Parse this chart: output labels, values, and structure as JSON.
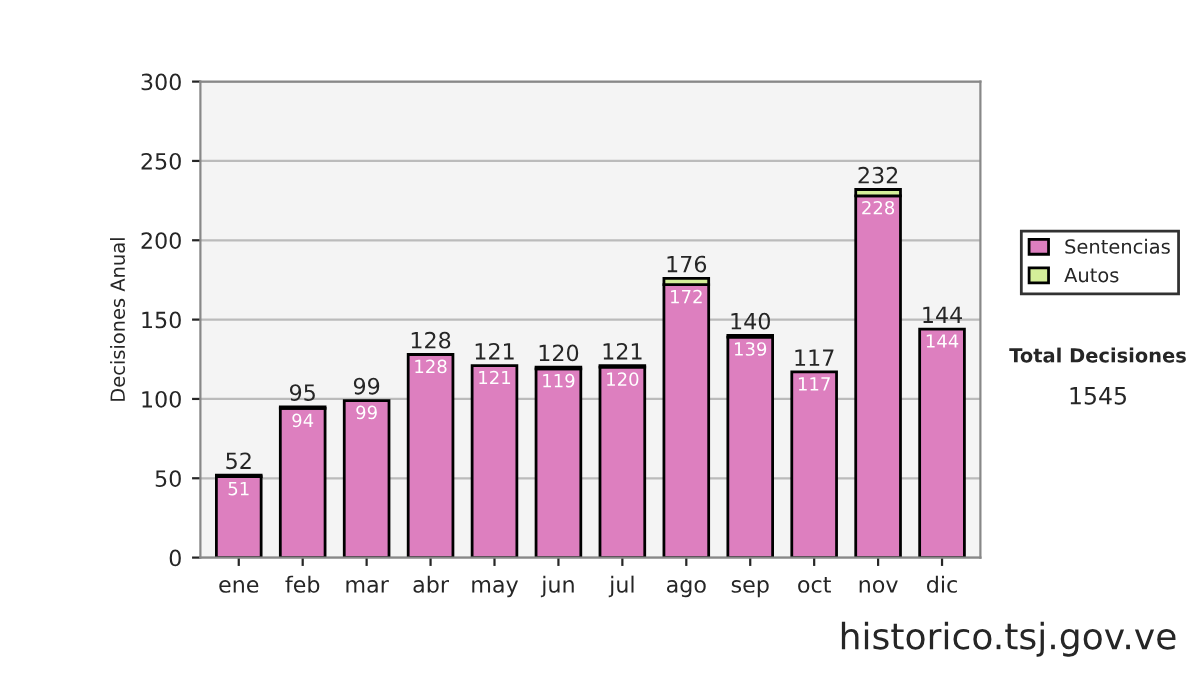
{
  "chart_data": {
    "type": "bar",
    "ylabel": "Decisiones Anual",
    "categories": [
      "ene",
      "feb",
      "mar",
      "abr",
      "may",
      "jun",
      "jul",
      "ago",
      "sep",
      "oct",
      "nov",
      "dic"
    ],
    "stacked": true,
    "series": [
      {
        "name": "Sentencias",
        "color": "#dd7fbf",
        "values": [
          51,
          94,
          99,
          128,
          121,
          119,
          120,
          172,
          139,
          117,
          228,
          144
        ],
        "value_labels": [
          "51",
          "94",
          "99",
          "128",
          "121",
          "119",
          "120",
          "172",
          "139",
          "117",
          "228",
          "144"
        ]
      },
      {
        "name": "Autos",
        "color": "#d4ee99",
        "values": [
          1,
          1,
          0,
          0,
          0,
          1,
          1,
          4,
          1,
          0,
          4,
          0
        ]
      }
    ],
    "totals": [
      "52",
      "95",
      "99",
      "128",
      "121",
      "120",
      "121",
      "176",
      "140",
      "117",
      "232",
      "144"
    ],
    "ylim": [
      0,
      300
    ],
    "yticks": [
      0,
      50,
      100,
      150,
      200,
      250,
      300
    ],
    "grid": "y",
    "legend": "right",
    "annotations": [
      "Total Decisiones",
      "1545",
      "historico.tsj.gov.ve"
    ]
  }
}
